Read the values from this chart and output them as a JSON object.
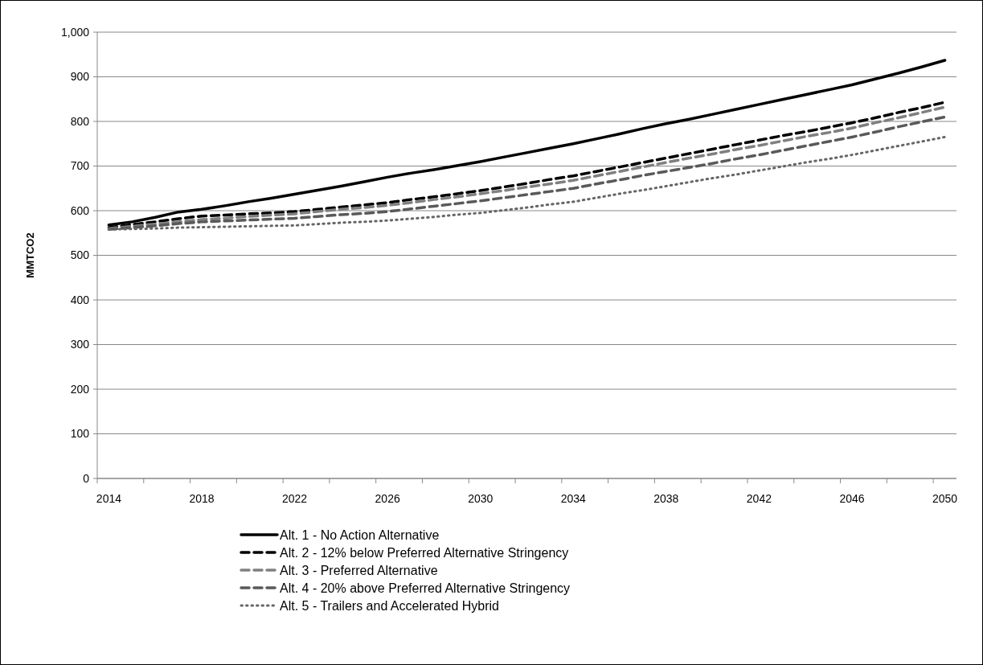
{
  "chart_data": {
    "type": "line",
    "ylabel": "MMTCO2",
    "categories": [
      "2014",
      null,
      null,
      null,
      "2018",
      null,
      null,
      null,
      "2022",
      null,
      null,
      null,
      "2026",
      null,
      null,
      null,
      "2030",
      null,
      null,
      null,
      "2034",
      null,
      null,
      null,
      "2038",
      null,
      null,
      null,
      "2042",
      null,
      null,
      null,
      "2046",
      null,
      null,
      null,
      "2050"
    ],
    "series": [
      {
        "name": "Alt. 1 - No Action Alternative",
        "color": "#000000",
        "line_style": "solid",
        "values": [
          568,
          575,
          585,
          597,
          603,
          611,
          620,
          628,
          637,
          646,
          655,
          665,
          675,
          684,
          692,
          701,
          710,
          720,
          730,
          740,
          750,
          761,
          772,
          784,
          795,
          805,
          816,
          827,
          838,
          849,
          860,
          871,
          882,
          895,
          908,
          922,
          937
        ]
      },
      {
        "name": "Alt. 2 - 12% below Preferred Alternative Stringency",
        "color": "#000000",
        "line_style": "dashed",
        "values": [
          562,
          569,
          575,
          582,
          588,
          590,
          593,
          595,
          598,
          603,
          608,
          613,
          618,
          625,
          631,
          638,
          645,
          653,
          661,
          670,
          678,
          688,
          698,
          708,
          718,
          728,
          738,
          748,
          758,
          768,
          777,
          787,
          797,
          808,
          820,
          831,
          843
        ]
      },
      {
        "name": "Alt. 3 - Preferred Alternative",
        "color": "#808080",
        "line_style": "dashed",
        "values": [
          560,
          565,
          570,
          575,
          580,
          583,
          587,
          590,
          593,
          598,
          603,
          607,
          612,
          618,
          625,
          631,
          638,
          645,
          653,
          660,
          668,
          678,
          688,
          698,
          708,
          718,
          727,
          737,
          746,
          756,
          766,
          775,
          785,
          797,
          808,
          820,
          832
        ]
      },
      {
        "name": "Alt. 4 - 20% above Preferred Alternative Stringency",
        "color": "#595959",
        "line_style": "dashed",
        "values": [
          558,
          562,
          566,
          571,
          575,
          577,
          579,
          581,
          583,
          587,
          591,
          594,
          598,
          604,
          610,
          616,
          622,
          629,
          636,
          643,
          650,
          660,
          669,
          679,
          688,
          697,
          706,
          716,
          725,
          735,
          745,
          755,
          765,
          776,
          788,
          799,
          810
        ]
      },
      {
        "name": "Alt. 5 - Trailers and Accelerated Hybrid",
        "color": "#666666",
        "line_style": "dotted",
        "values": [
          558,
          559,
          560,
          562,
          563,
          564,
          565,
          566,
          567,
          570,
          573,
          575,
          578,
          582,
          586,
          591,
          595,
          601,
          607,
          614,
          620,
          629,
          638,
          646,
          655,
          664,
          673,
          681,
          690,
          699,
          708,
          716,
          725,
          735,
          745,
          755,
          765
        ]
      }
    ],
    "ylim": [
      0,
      1000
    ],
    "yticks": [
      0,
      100,
      200,
      300,
      400,
      500,
      600,
      700,
      800,
      900,
      {
        "value": 1000,
        "label": "1,000"
      }
    ],
    "grid": "y",
    "legend": "bottom"
  }
}
